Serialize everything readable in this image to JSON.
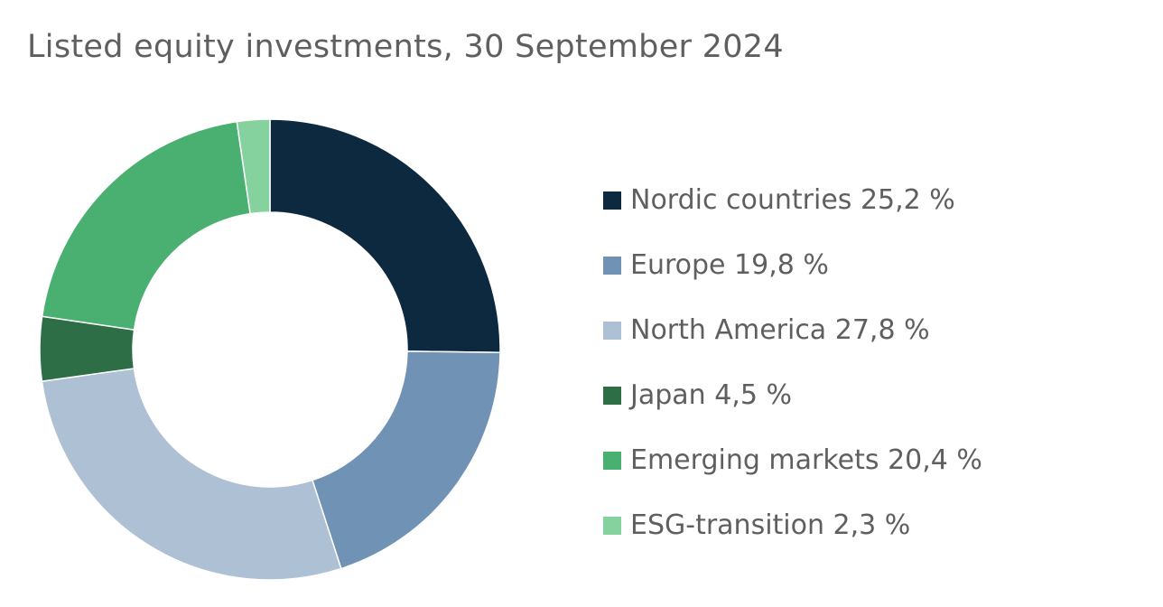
{
  "chart_data": {
    "type": "pie",
    "title": "Listed equity investments, 30 September 2024",
    "style": "donut",
    "legend_position": "right",
    "unit": "%",
    "slices": [
      {
        "label": "Nordic countries",
        "value": 25.2,
        "value_text": "25,2 %",
        "color": "#0d2940"
      },
      {
        "label": "Europe",
        "value": 19.8,
        "value_text": "19,8 %",
        "color": "#7092b5"
      },
      {
        "label": "North America",
        "value": 27.8,
        "value_text": "27,8 %",
        "color": "#adc0d4"
      },
      {
        "label": "Japan",
        "value": 4.5,
        "value_text": "4,5 %",
        "color": "#2e6e46"
      },
      {
        "label": "Emerging markets",
        "value": 20.4,
        "value_text": "20,4 %",
        "color": "#4ab072"
      },
      {
        "label": "ESG-transition",
        "value": 2.3,
        "value_text": "2,3 %",
        "color": "#85d29e"
      }
    ]
  }
}
